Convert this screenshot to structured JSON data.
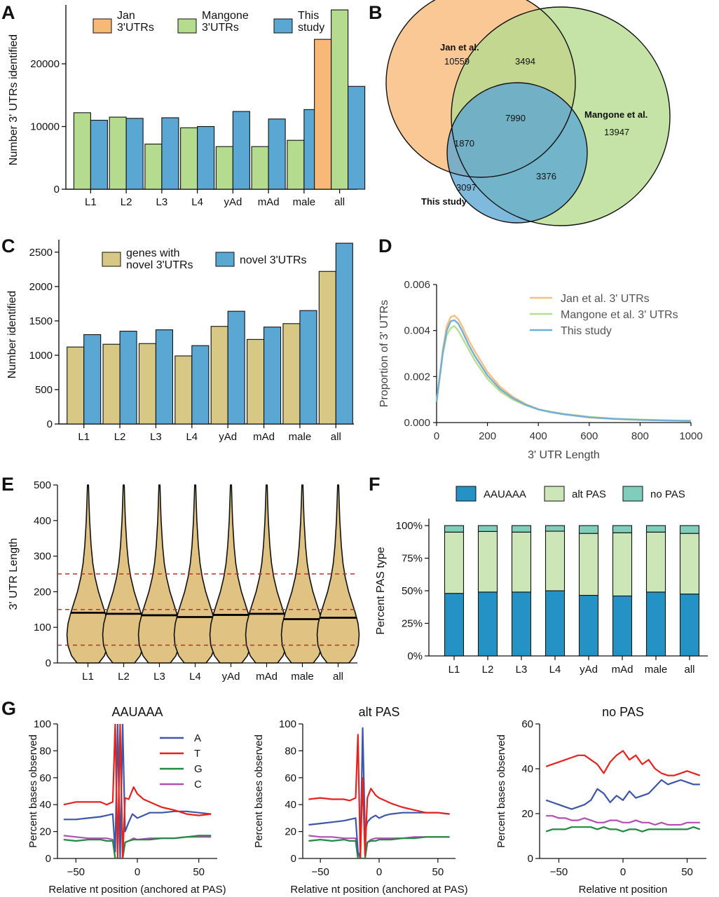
{
  "panel_letters": {
    "A": "A",
    "B": "B",
    "C": "C",
    "D": "D",
    "E": "E",
    "F": "F",
    "G": "G"
  },
  "colors": {
    "jan": "#F8B877",
    "mangone": "#B5DB8E",
    "study": "#5BA7D4",
    "genes": "#D8C885",
    "violin": "#E0C383",
    "median_line": "#000000",
    "guide_line": "#B83232",
    "aauaaa": "#2592C5",
    "altpas": "#CCE6B8",
    "nopas": "#80CDBB",
    "base_A": "#3E56A8",
    "base_T": "#E4231F",
    "base_G": "#1E8A42",
    "base_C": "#B24FB2",
    "d_jan": "#F9BF7F",
    "d_mangone": "#B8DE8F",
    "d_study": "#71AFD8"
  },
  "chart_data": [
    {
      "id": "A",
      "type": "bar",
      "categories": [
        "L1",
        "L2",
        "L3",
        "L4",
        "yAd",
        "mAd",
        "male",
        "all"
      ],
      "ylabel": "Number 3' UTRs identified",
      "ylim": [
        0,
        28500
      ],
      "yticks": [
        0,
        10000,
        20000
      ],
      "legend": [
        {
          "name": "Jan\n3'UTRs"
        },
        {
          "name": "Mangone\n3'UTRs"
        },
        {
          "name": "This\nstudy"
        }
      ],
      "series": [
        {
          "key": "jan",
          "values": [
            null,
            null,
            null,
            null,
            null,
            null,
            null,
            23900
          ]
        },
        {
          "key": "mangone",
          "values": [
            12200,
            11500,
            7200,
            9800,
            6800,
            6800,
            7800,
            28600
          ]
        },
        {
          "key": "study",
          "values": [
            11000,
            11300,
            11400,
            10000,
            12400,
            11200,
            12700,
            16400
          ]
        }
      ]
    },
    {
      "id": "B",
      "type": "venn",
      "sets": [
        {
          "key": "jan",
          "name": "Jan et al.",
          "count": "10559"
        },
        {
          "key": "mangone",
          "name": "Mangone et al.",
          "count": "13947"
        },
        {
          "key": "study",
          "name": "This study",
          "count": "3097"
        }
      ],
      "overlaps": {
        "jan_mangone": "3494",
        "all_three": "7990",
        "jan_study": "1870",
        "mangone_study": "3376"
      }
    },
    {
      "id": "C",
      "type": "bar",
      "categories": [
        "L1",
        "L2",
        "L3",
        "L4",
        "yAd",
        "mAd",
        "male",
        "all"
      ],
      "ylabel": "Number identified",
      "ylim": [
        0,
        2600
      ],
      "yticks": [
        0,
        500,
        1000,
        1500,
        2000,
        2500
      ],
      "legend": [
        {
          "name": "genes with\nnovel 3'UTRs"
        },
        {
          "name": "novel 3'UTRs"
        }
      ],
      "series": [
        {
          "key": "genes",
          "values": [
            1120,
            1160,
            1170,
            990,
            1420,
            1230,
            1460,
            2220
          ]
        },
        {
          "key": "study",
          "values": [
            1300,
            1350,
            1370,
            1140,
            1640,
            1410,
            1650,
            2630
          ]
        }
      ]
    },
    {
      "id": "D",
      "type": "line",
      "xlabel": "3' UTR Length",
      "ylabel": "Proportion of 3' UTRs",
      "xlim": [
        0,
        1000
      ],
      "ylim": [
        0,
        0.006
      ],
      "xticks": [
        0,
        200,
        400,
        600,
        800,
        1000
      ],
      "yticks": [
        "0.000",
        "0.002",
        "0.004",
        "0.006"
      ],
      "x": [
        0,
        10,
        25,
        40,
        55,
        70,
        85,
        100,
        125,
        150,
        200,
        250,
        300,
        350,
        400,
        450,
        500,
        600,
        700,
        800,
        900,
        1000
      ],
      "series": [
        {
          "name": "Jan et al. 3' UTRs",
          "key": "d_jan",
          "values": [
            0.0009,
            0.0018,
            0.0032,
            0.0042,
            0.00458,
            0.00465,
            0.0045,
            0.0042,
            0.0036,
            0.0031,
            0.0022,
            0.00155,
            0.00112,
            0.0008,
            0.00058,
            0.00045,
            0.00036,
            0.00022,
            0.00015,
            0.00011,
            9e-05,
            7e-05
          ]
        },
        {
          "name": "Mangone et al. 3' UTRs",
          "key": "d_mangone",
          "values": [
            0.0009,
            0.0017,
            0.003,
            0.0038,
            0.0041,
            0.0042,
            0.004,
            0.0037,
            0.0032,
            0.0027,
            0.0019,
            0.00135,
            0.001,
            0.00075,
            0.00058,
            0.00047,
            0.00038,
            0.00025,
            0.00017,
            0.00013,
            0.0001,
            8e-05
          ]
        },
        {
          "name": "This study",
          "key": "d_study",
          "values": [
            0.0009,
            0.0018,
            0.0031,
            0.004,
            0.0044,
            0.00445,
            0.0043,
            0.004,
            0.0034,
            0.0029,
            0.00205,
            0.00145,
            0.00106,
            0.00078,
            0.00057,
            0.00045,
            0.00036,
            0.00023,
            0.00016,
            0.00012,
            9e-05,
            7e-05
          ]
        }
      ]
    },
    {
      "id": "E",
      "type": "violin",
      "categories": [
        "L1",
        "L2",
        "L3",
        "L4",
        "yAd",
        "mAd",
        "male",
        "all"
      ],
      "ylabel": "3' UTR Length",
      "ylim": [
        0,
        500
      ],
      "yticks": [
        0,
        100,
        200,
        300,
        400,
        500
      ],
      "medians": [
        141,
        138,
        134,
        129,
        135,
        138,
        123,
        127
      ],
      "reference_lines": [
        50,
        150,
        250
      ]
    },
    {
      "id": "F",
      "type": "stacked_bar",
      "categories": [
        "L1",
        "L2",
        "L3",
        "L4",
        "yAd",
        "mAd",
        "male",
        "all"
      ],
      "ylabel": "Percent PAS type",
      "ylim": [
        0,
        100
      ],
      "yticks": [
        "0%",
        "25%",
        "50%",
        "75%",
        "100%"
      ],
      "legend": [
        {
          "name": "AAUAAA"
        },
        {
          "name": "alt PAS"
        },
        {
          "name": "no PAS"
        }
      ],
      "series": [
        {
          "key": "aauaaa",
          "values": [
            48,
            49,
            49,
            50,
            46.5,
            46,
            49,
            47.5
          ]
        },
        {
          "key": "altpas",
          "values": [
            47,
            46.5,
            46,
            45.7,
            47.5,
            48.5,
            46,
            46.5
          ]
        },
        {
          "key": "nopas",
          "values": [
            5,
            4.5,
            5,
            4.3,
            6,
            5.5,
            5,
            6
          ]
        }
      ]
    },
    {
      "id": "G1",
      "type": "line",
      "title": "AAUAAA",
      "xlabel": "Relative nt position (anchored at PAS)",
      "ylabel": "Percent bases observed",
      "xlim": [
        -65,
        65
      ],
      "ylim": [
        0,
        100
      ],
      "xticks": [
        "−50",
        "0",
        "50"
      ],
      "yticks": [
        0,
        20,
        40,
        60,
        80,
        100
      ],
      "legend": [
        {
          "name": "A"
        },
        {
          "name": "T"
        },
        {
          "name": "G"
        },
        {
          "name": "C"
        }
      ],
      "series": [
        {
          "name": "A",
          "key": "base_A",
          "x": [
            -60,
            -50,
            -40,
            -30,
            -25,
            -20,
            -18,
            -16,
            -14,
            -12,
            -10,
            -7,
            -4,
            0,
            5,
            10,
            20,
            30,
            40,
            50,
            60
          ],
          "values": [
            29,
            29,
            30,
            31,
            32,
            33,
            5,
            100,
            0,
            100,
            20,
            27,
            33,
            30,
            32,
            34,
            34,
            35,
            35,
            34,
            33
          ]
        },
        {
          "name": "T",
          "key": "base_T",
          "x": [
            -60,
            -50,
            -40,
            -30,
            -25,
            -20,
            -18,
            -16,
            -14,
            -12,
            -10,
            -7,
            -3,
            0,
            5,
            10,
            20,
            30,
            40,
            50,
            60
          ],
          "values": [
            40,
            42,
            42,
            42,
            40,
            42,
            100,
            0,
            100,
            0,
            45,
            44,
            53,
            48,
            44,
            42,
            38,
            36,
            33,
            32,
            33
          ]
        },
        {
          "name": "G",
          "key": "base_G",
          "x": [
            -60,
            -50,
            -40,
            -30,
            -25,
            -20,
            -18,
            -16,
            -14,
            -12,
            -10,
            -7,
            -3,
            0,
            10,
            20,
            30,
            40,
            50,
            60
          ],
          "values": [
            14,
            13,
            14,
            14,
            13,
            13,
            0,
            0,
            0,
            0,
            12,
            13,
            14,
            14,
            14,
            15,
            15,
            16,
            17,
            17
          ]
        },
        {
          "name": "C",
          "key": "base_C",
          "x": [
            -60,
            -50,
            -40,
            -30,
            -25,
            -20,
            -18,
            -16,
            -14,
            -12,
            -10,
            -7,
            -3,
            0,
            10,
            20,
            30,
            40,
            50,
            60
          ],
          "values": [
            17,
            16,
            15,
            15,
            15,
            14,
            0,
            0,
            0,
            0,
            12,
            13,
            15,
            14,
            15,
            15,
            15,
            16,
            16,
            16
          ]
        }
      ]
    },
    {
      "id": "G2",
      "type": "line",
      "title": "alt PAS",
      "xlabel": "Relative nt position (anchored at PAS)",
      "ylabel": "Percent bases observed",
      "xlim": [
        -65,
        65
      ],
      "ylim": [
        0,
        100
      ],
      "xticks": [
        "−50",
        "0",
        "50"
      ],
      "yticks": [
        0,
        20,
        40,
        60,
        80,
        100
      ],
      "series": [
        {
          "name": "A",
          "key": "base_A",
          "x": [
            -60,
            -50,
            -40,
            -30,
            -25,
            -20,
            -18,
            -16,
            -14,
            -12,
            -10,
            -7,
            -3,
            0,
            5,
            10,
            20,
            30,
            40,
            50,
            60
          ],
          "values": [
            25,
            26,
            27,
            28,
            29,
            30,
            5,
            0,
            97,
            20,
            27,
            30,
            32,
            30,
            32,
            33,
            34,
            34,
            34,
            34,
            33
          ]
        },
        {
          "name": "T",
          "key": "base_T",
          "x": [
            -60,
            -50,
            -40,
            -30,
            -25,
            -20,
            -18,
            -16,
            -14,
            -12,
            -10,
            -7,
            -3,
            0,
            5,
            10,
            20,
            30,
            40,
            50,
            60
          ],
          "values": [
            44,
            45,
            44,
            44,
            43,
            45,
            92,
            0,
            60,
            2,
            45,
            52,
            47,
            45,
            43,
            41,
            38,
            36,
            34,
            34,
            33
          ]
        },
        {
          "name": "G",
          "key": "base_G",
          "x": [
            -60,
            -50,
            -40,
            -30,
            -25,
            -20,
            -18,
            -16,
            -14,
            -12,
            -10,
            -7,
            -3,
            0,
            10,
            20,
            30,
            40,
            50,
            60
          ],
          "values": [
            13,
            14,
            13,
            14,
            13,
            13,
            0,
            0,
            0,
            0,
            12,
            13,
            13,
            14,
            14,
            15,
            15,
            16,
            16,
            16
          ]
        },
        {
          "name": "C",
          "key": "base_C",
          "x": [
            -60,
            -50,
            -40,
            -30,
            -25,
            -20,
            -18,
            -16,
            -14,
            -12,
            -10,
            -7,
            -3,
            0,
            10,
            20,
            30,
            40,
            50,
            60
          ],
          "values": [
            17,
            16,
            16,
            15,
            15,
            15,
            0,
            0,
            0,
            0,
            12,
            14,
            15,
            15,
            15,
            15,
            16,
            16,
            16,
            16
          ]
        }
      ]
    },
    {
      "id": "G3",
      "type": "line",
      "title": "no PAS",
      "xlabel": "Relative nt position",
      "ylabel": "Percent bases observed",
      "xlim": [
        -65,
        65
      ],
      "ylim": [
        0,
        60
      ],
      "xticks": [
        "−50",
        "0",
        "50"
      ],
      "yticks": [
        0,
        20,
        40,
        60
      ],
      "series": [
        {
          "name": "A",
          "key": "base_A",
          "x": [
            -60,
            -55,
            -50,
            -45,
            -40,
            -35,
            -30,
            -25,
            -20,
            -15,
            -10,
            -5,
            0,
            5,
            10,
            15,
            20,
            25,
            30,
            35,
            40,
            45,
            50,
            55,
            60
          ],
          "values": [
            26,
            25,
            24,
            23,
            22,
            23,
            24,
            26,
            31,
            29,
            25,
            28,
            26,
            30,
            27,
            28,
            29,
            32,
            35,
            33,
            34,
            35,
            34,
            33,
            33
          ]
        },
        {
          "name": "T",
          "key": "base_T",
          "x": [
            -60,
            -55,
            -50,
            -45,
            -40,
            -35,
            -30,
            -25,
            -20,
            -15,
            -10,
            -5,
            0,
            5,
            10,
            15,
            20,
            25,
            30,
            35,
            40,
            45,
            50,
            55,
            60
          ],
          "values": [
            41,
            42,
            43,
            44,
            45,
            46,
            46,
            44,
            42,
            38,
            43,
            46,
            48,
            44,
            46,
            42,
            44,
            40,
            38,
            37,
            37,
            38,
            39,
            38,
            37
          ]
        },
        {
          "name": "G",
          "key": "base_G",
          "x": [
            -60,
            -55,
            -50,
            -45,
            -40,
            -35,
            -30,
            -25,
            -20,
            -15,
            -10,
            -5,
            0,
            5,
            10,
            15,
            20,
            25,
            30,
            35,
            40,
            45,
            50,
            55,
            60
          ],
          "values": [
            12,
            13,
            13,
            13,
            14,
            14,
            14,
            14,
            13,
            14,
            13,
            13,
            12,
            13,
            13,
            12,
            13,
            13,
            13,
            13,
            13,
            13,
            13,
            14,
            13
          ]
        },
        {
          "name": "C",
          "key": "base_C",
          "x": [
            -60,
            -55,
            -50,
            -45,
            -40,
            -35,
            -30,
            -25,
            -20,
            -15,
            -10,
            -5,
            0,
            5,
            10,
            15,
            20,
            25,
            30,
            35,
            40,
            45,
            50,
            55,
            60
          ],
          "values": [
            19,
            19,
            18,
            18,
            17,
            17,
            18,
            17,
            16,
            16,
            17,
            17,
            16,
            16,
            17,
            16,
            16,
            15,
            16,
            15,
            15,
            15,
            16,
            16,
            16
          ]
        }
      ]
    }
  ]
}
